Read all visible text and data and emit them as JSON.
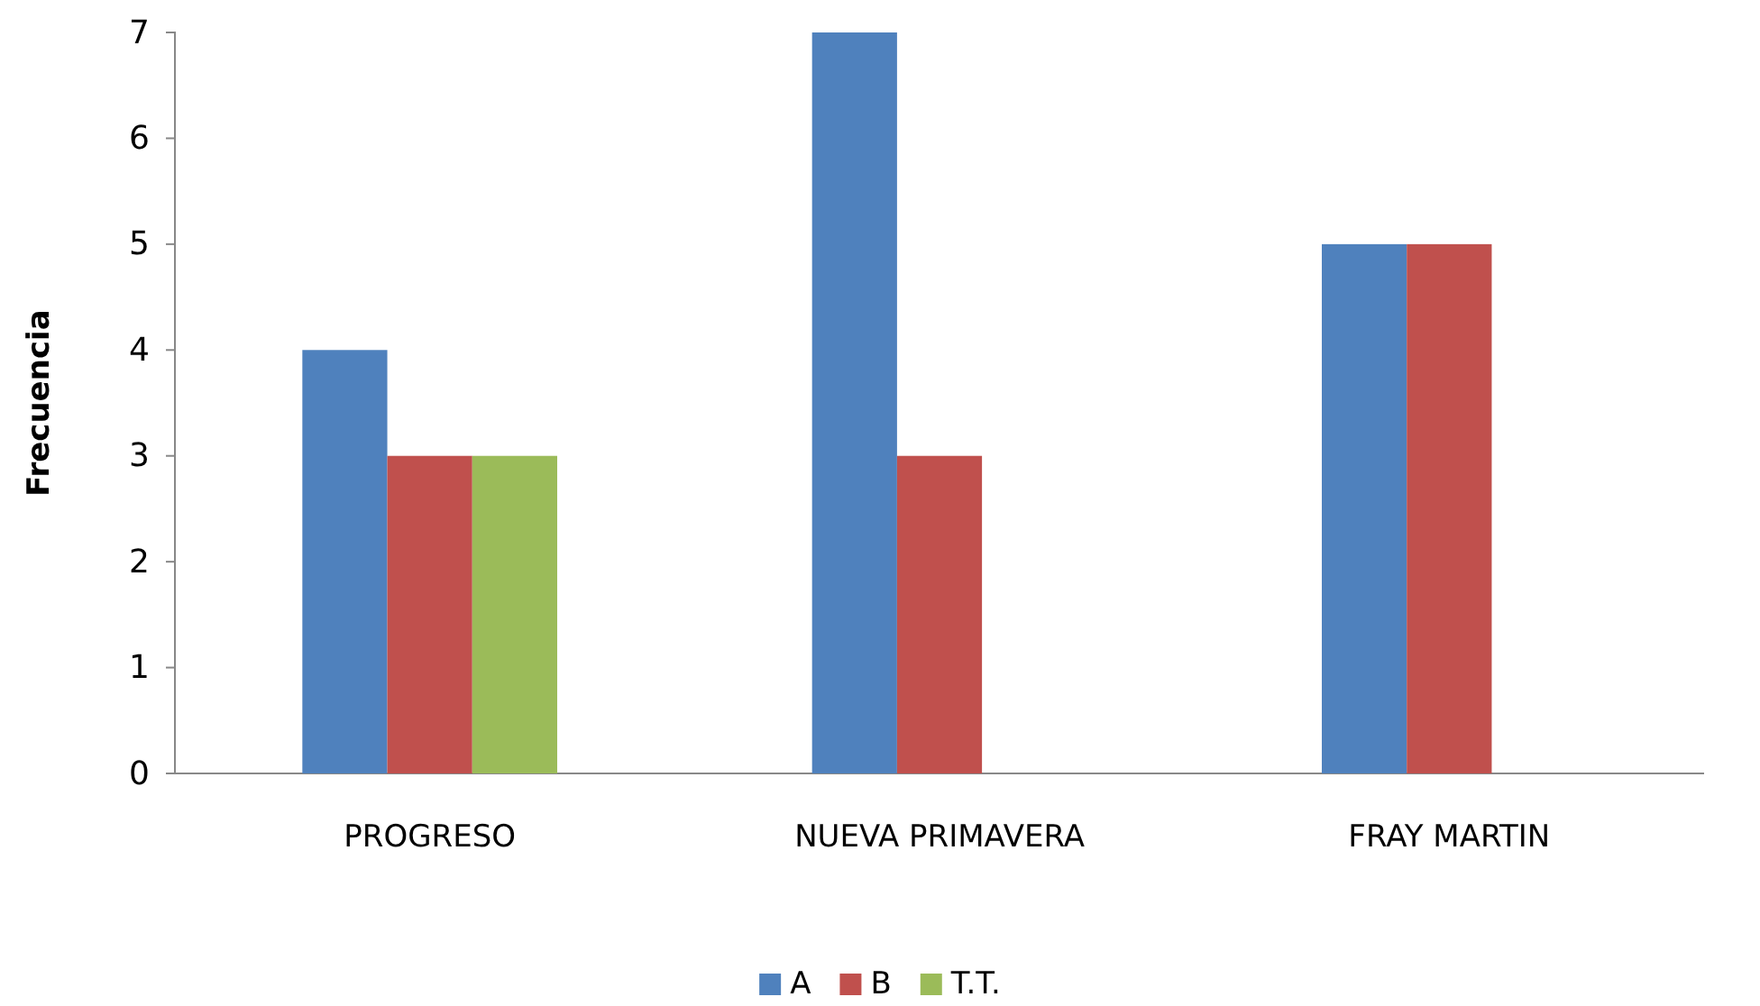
{
  "chart_data": {
    "type": "bar",
    "ylabel": "Frecuencia",
    "categories": [
      "PROGRESO",
      "NUEVA PRIMAVERA",
      "FRAY MARTIN"
    ],
    "series": [
      {
        "name": "A",
        "color": "#4f81bd",
        "values": [
          4,
          7,
          5
        ]
      },
      {
        "name": "B",
        "color": "#c0504d",
        "values": [
          3,
          3,
          5
        ]
      },
      {
        "name": "T.T.",
        "color": "#9bbb59",
        "values": [
          3,
          0,
          0
        ]
      }
    ],
    "ylim": [
      0,
      7
    ],
    "yticks": [
      0,
      1,
      2,
      3,
      4,
      5,
      6,
      7
    ],
    "grid": false,
    "legend": "bottom"
  }
}
